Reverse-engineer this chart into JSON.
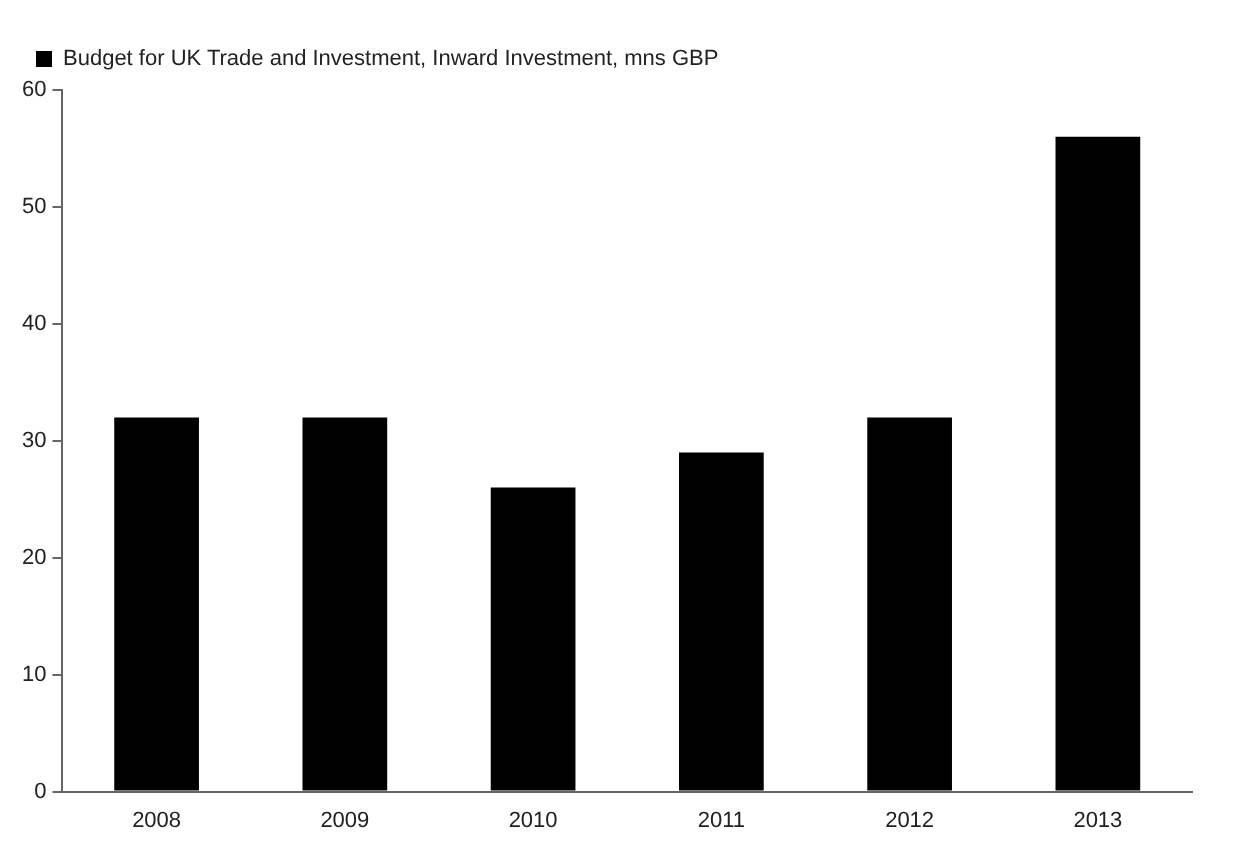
{
  "chart_data": {
    "type": "bar",
    "categories": [
      "2008",
      "2009",
      "2010",
      "2011",
      "2012",
      "2013"
    ],
    "series": [
      {
        "name": "Budget for UK Trade and Investment, Inward Investment, mns GBP",
        "color": "#000000",
        "values": [
          32,
          32,
          26,
          29,
          32,
          56
        ]
      }
    ],
    "ylim": [
      0,
      60
    ],
    "yticks": [
      0,
      10,
      20,
      30,
      40,
      50,
      60
    ],
    "grid": false,
    "legend": "top left"
  }
}
